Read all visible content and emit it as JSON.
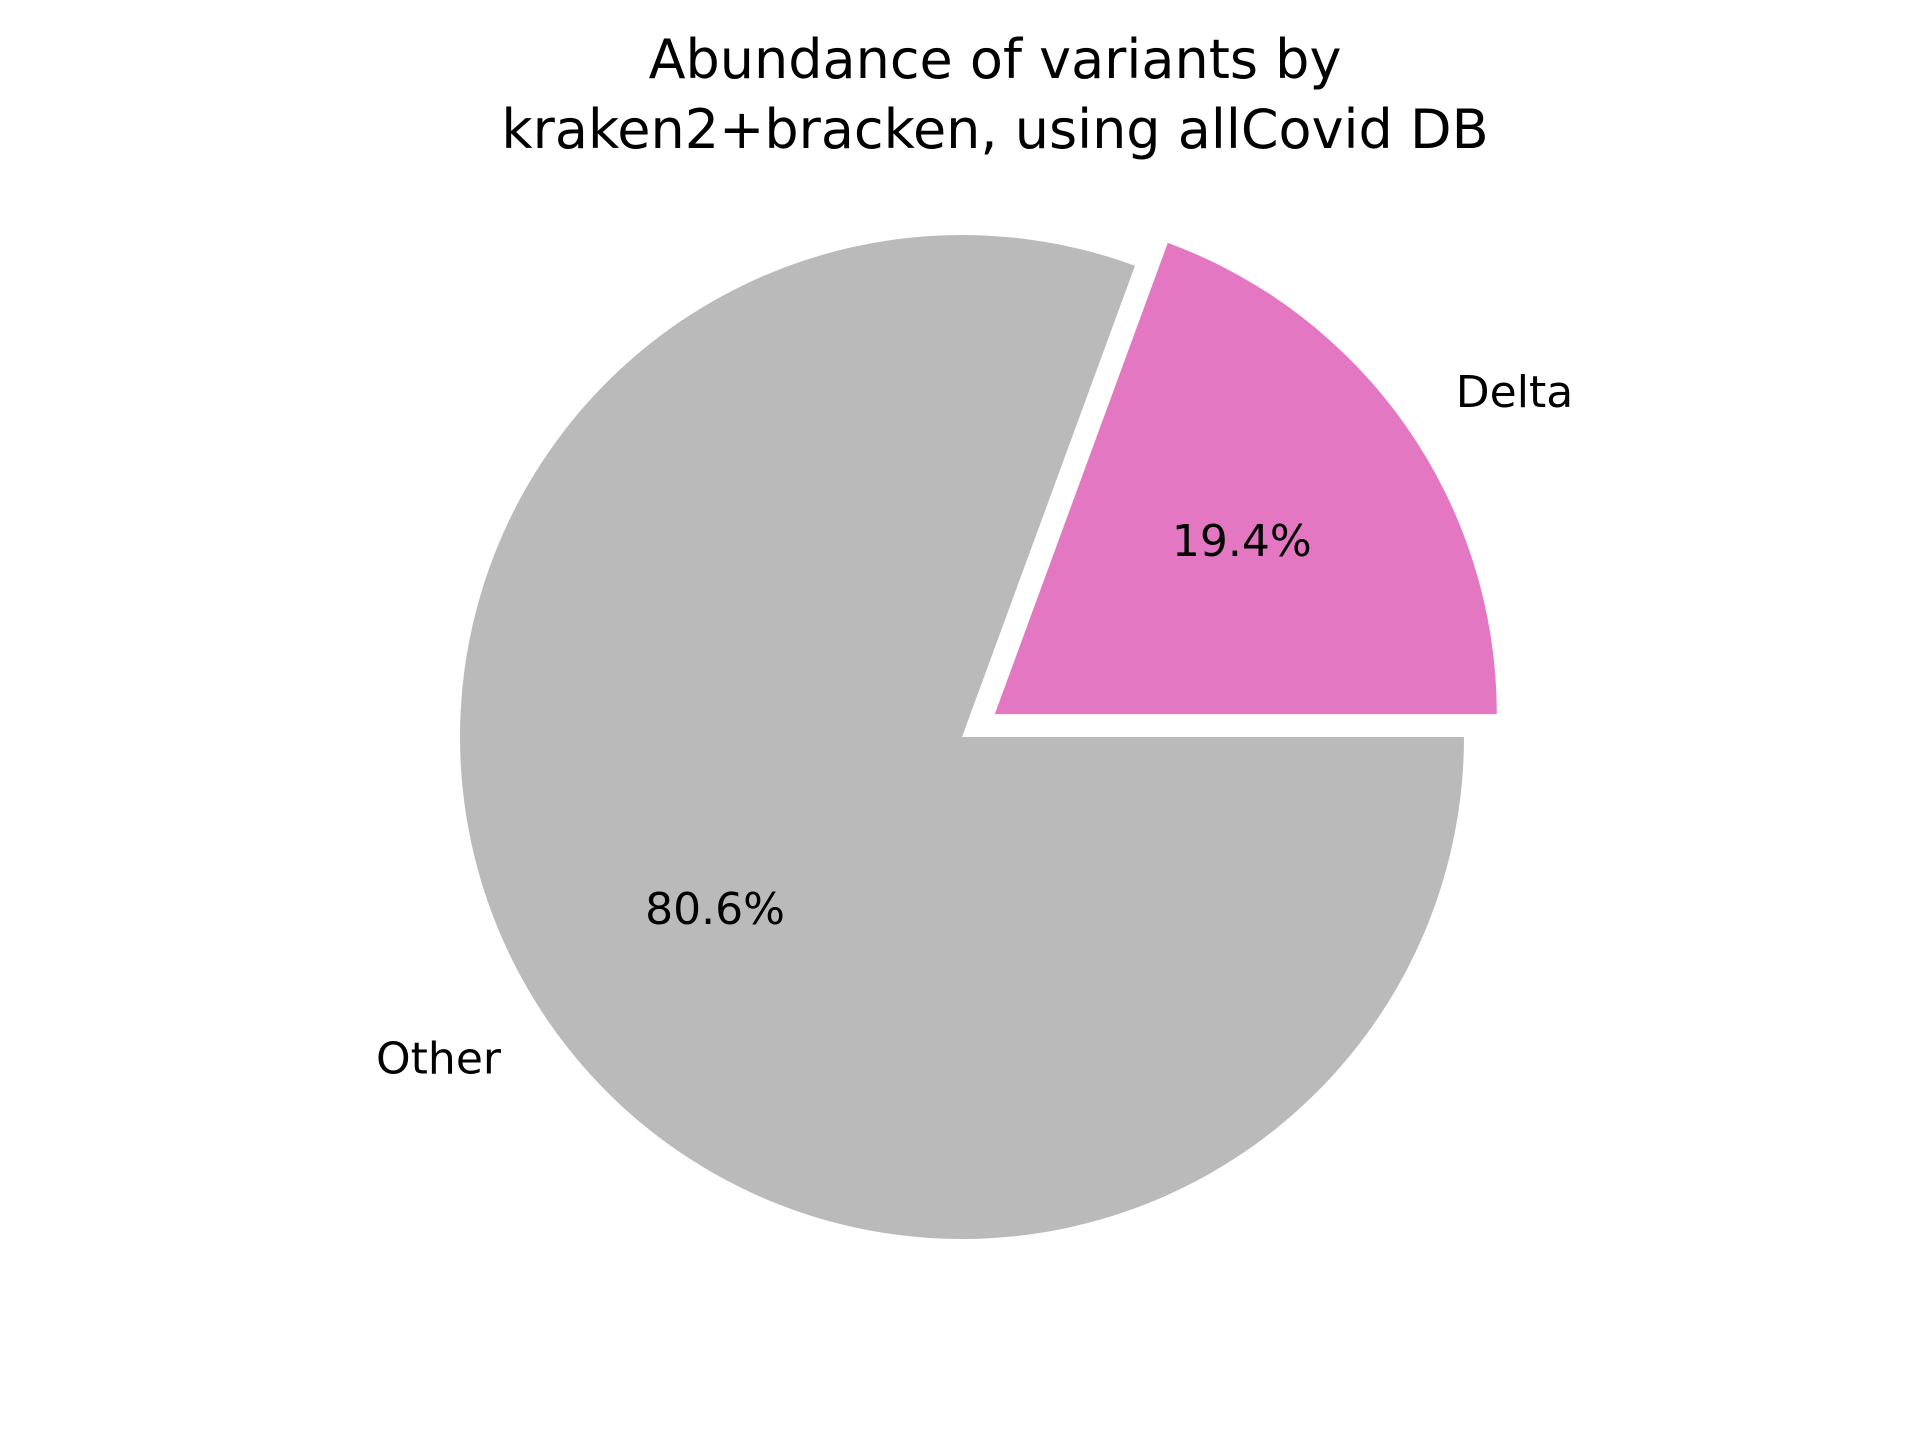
{
  "chart_data": {
    "type": "pie",
    "title": "Abundance of variants by kraken2+bracken, using allCovid DB",
    "title_lines": [
      "Abundance of variants by",
      "kraken2+bracken, using allCovid DB"
    ],
    "start_angle_deg": 0,
    "direction": "counterclockwise",
    "slices": [
      {
        "label": "Delta",
        "value": 19.4,
        "pct_label": "19.4%",
        "color": "#e377c2",
        "exploded": true
      },
      {
        "label": "Other",
        "value": 80.6,
        "pct_label": "80.6%",
        "color": "#bababa",
        "exploded": false
      }
    ]
  }
}
